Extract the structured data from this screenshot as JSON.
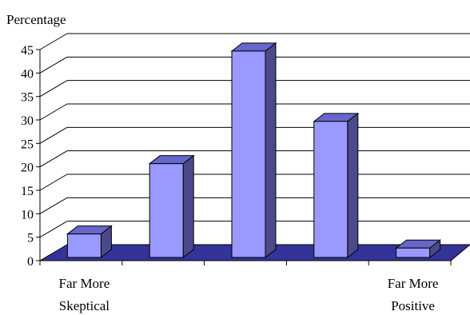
{
  "chart_data": {
    "type": "bar",
    "ylabel": "Percentage",
    "xlabel": "",
    "categories": [
      "Far More\nSkeptical",
      "",
      "",
      "",
      "Far More\nPositive"
    ],
    "values": [
      5,
      20,
      44,
      29,
      2
    ],
    "ylim": [
      0,
      45
    ],
    "yticks": [
      0,
      5,
      10,
      15,
      20,
      25,
      30,
      35,
      40,
      45
    ],
    "grid": true,
    "bar_color": "#9999ff",
    "bar_side_color": "#4a4a8a",
    "floor_color": "#333399"
  }
}
